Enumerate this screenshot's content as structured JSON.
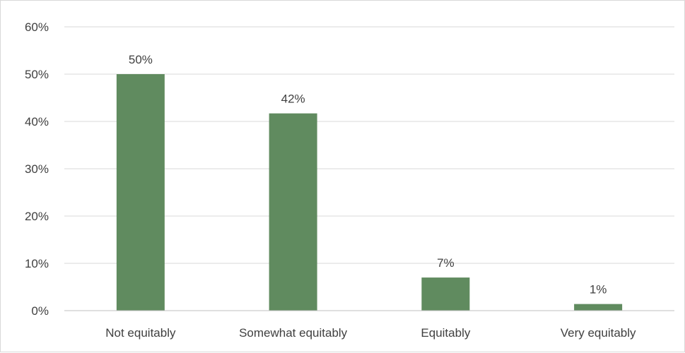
{
  "chart_data": {
    "type": "bar",
    "categories": [
      "Not equitably",
      "Somewhat equitably",
      "Equitably",
      "Very equitably"
    ],
    "values": [
      50,
      41.7,
      7,
      1.4
    ],
    "data_labels": [
      "50%",
      "42%",
      "7%",
      "1%"
    ],
    "ylim": [
      0,
      60
    ],
    "yticks": [
      0,
      10,
      20,
      30,
      40,
      50,
      60
    ],
    "ytick_labels": [
      "0%",
      "10%",
      "20%",
      "30%",
      "40%",
      "50%",
      "60%"
    ],
    "grid": true,
    "legend": "none",
    "bar_color": "#608b5f",
    "grid_color": "#d9d9d9",
    "text_color": "#404040"
  }
}
